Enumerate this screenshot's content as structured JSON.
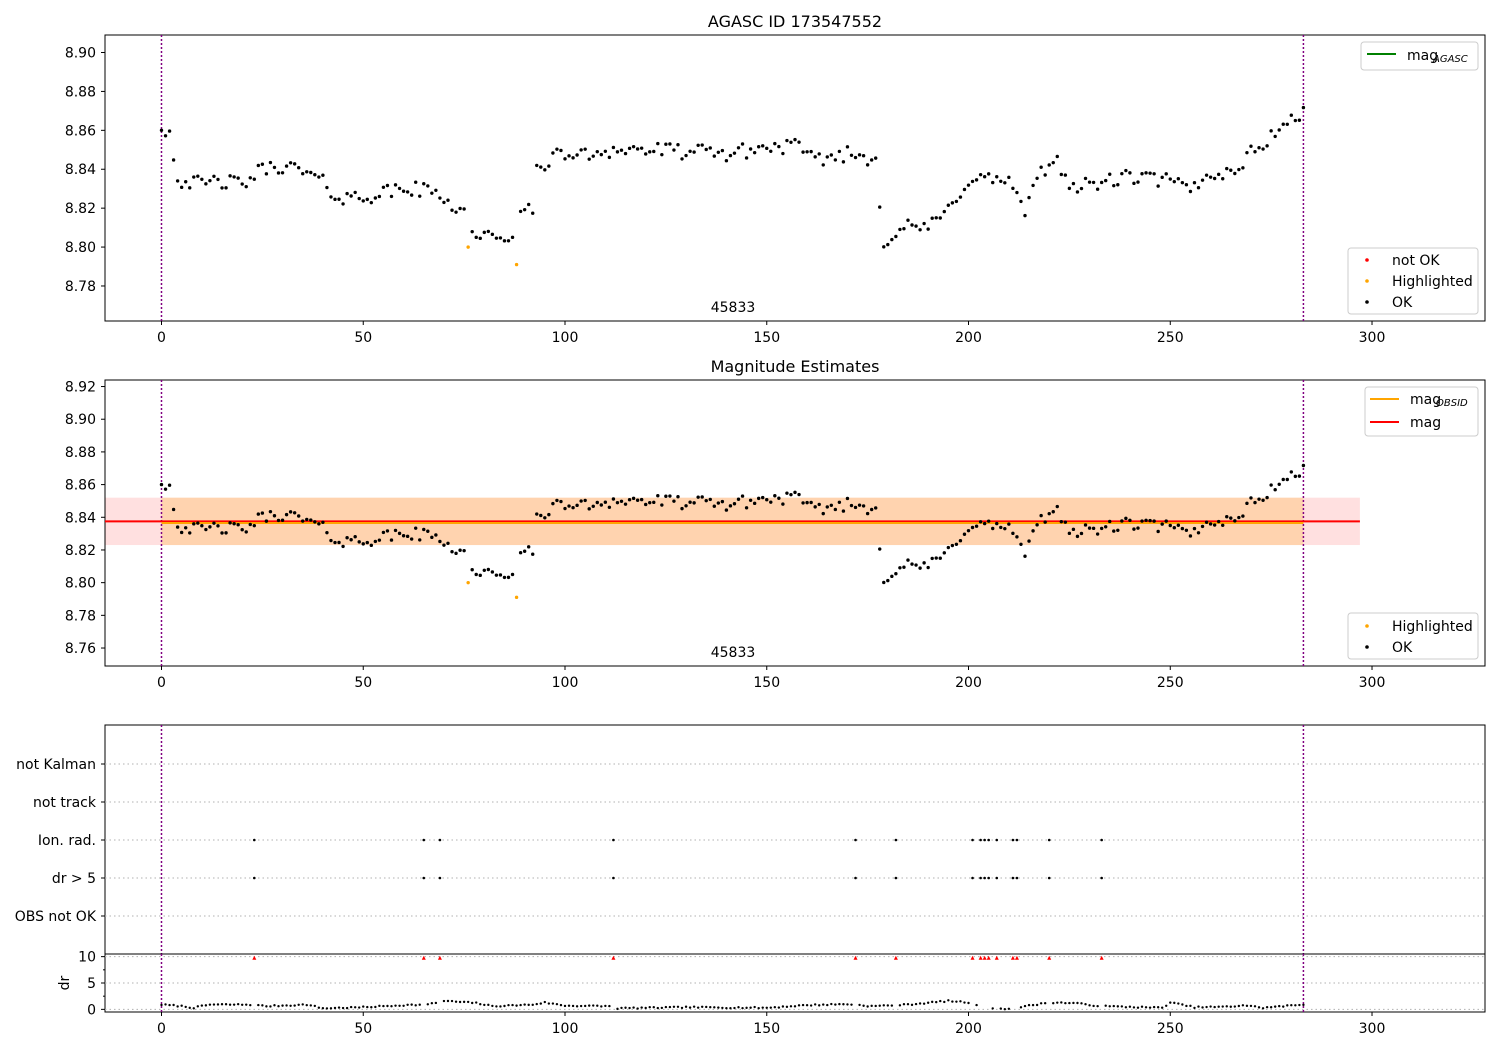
{
  "chart_data": [
    {
      "type": "scatter",
      "title": "AGASC ID 173547552",
      "annotation": "45833",
      "x_ticks": [
        "0",
        "50",
        "100",
        "150",
        "200",
        "250",
        "300"
      ],
      "y_ticks": [
        "8.78",
        "8.80",
        "8.82",
        "8.84",
        "8.86",
        "8.88",
        "8.90"
      ],
      "xlim": [
        -14,
        328
      ],
      "ylim": [
        8.762,
        8.909
      ],
      "obs_boundaries": [
        0,
        283
      ],
      "line_legend": [
        {
          "name": "mag",
          "subscript": "AGASC",
          "color": "#008000"
        }
      ],
      "marker_legend": [
        {
          "name": "not OK",
          "color": "#ff0000"
        },
        {
          "name": "Highlighted",
          "color": "#ffa500"
        },
        {
          "name": "OK",
          "color": "#000000"
        }
      ],
      "highlighted_points": [
        {
          "x": 76,
          "y": 8.8
        },
        {
          "x": 88,
          "y": 8.791
        }
      ],
      "series_anchors": [
        [
          0,
          8.862
        ],
        [
          2,
          8.859
        ],
        [
          4,
          8.835
        ],
        [
          10,
          8.832
        ],
        [
          14,
          8.834
        ],
        [
          20,
          8.832
        ],
        [
          25,
          8.84
        ],
        [
          30,
          8.842
        ],
        [
          36,
          8.838
        ],
        [
          40,
          8.833
        ],
        [
          44,
          8.825
        ],
        [
          50,
          8.826
        ],
        [
          56,
          8.828
        ],
        [
          60,
          8.83
        ],
        [
          66,
          8.829
        ],
        [
          70,
          8.826
        ],
        [
          73,
          8.82
        ],
        [
          75,
          8.818
        ],
        [
          77,
          8.808
        ],
        [
          80,
          8.806
        ],
        [
          84,
          8.802
        ],
        [
          87,
          8.808
        ],
        [
          89,
          8.818
        ],
        [
          92,
          8.818
        ],
        [
          93,
          8.84
        ],
        [
          96,
          8.845
        ],
        [
          100,
          8.848
        ],
        [
          105,
          8.847
        ],
        [
          110,
          8.85
        ],
        [
          120,
          8.85
        ],
        [
          130,
          8.849
        ],
        [
          140,
          8.848
        ],
        [
          150,
          8.851
        ],
        [
          155,
          8.852
        ],
        [
          158,
          8.852
        ],
        [
          160,
          8.845
        ],
        [
          165,
          8.846
        ],
        [
          170,
          8.848
        ],
        [
          175,
          8.846
        ],
        [
          177,
          8.845
        ],
        [
          179,
          8.803
        ],
        [
          184,
          8.81
        ],
        [
          188,
          8.81
        ],
        [
          192,
          8.812
        ],
        [
          196,
          8.822
        ],
        [
          200,
          8.835
        ],
        [
          205,
          8.835
        ],
        [
          210,
          8.834
        ],
        [
          214,
          8.818
        ],
        [
          218,
          8.838
        ],
        [
          222,
          8.845
        ],
        [
          226,
          8.83
        ],
        [
          230,
          8.832
        ],
        [
          240,
          8.836
        ],
        [
          250,
          8.834
        ],
        [
          255,
          8.829
        ],
        [
          260,
          8.838
        ],
        [
          265,
          8.838
        ],
        [
          270,
          8.848
        ],
        [
          275,
          8.857
        ],
        [
          280,
          8.866
        ],
        [
          283,
          8.868
        ]
      ],
      "noise": 0.004
    },
    {
      "type": "scatter",
      "title": "Magnitude Estimates",
      "annotation": "45833",
      "x_ticks": [
        "0",
        "50",
        "100",
        "150",
        "200",
        "250",
        "300"
      ],
      "y_ticks": [
        "8.76",
        "8.78",
        "8.80",
        "8.82",
        "8.84",
        "8.86",
        "8.88",
        "8.90",
        "8.92"
      ],
      "xlim": [
        -14,
        328
      ],
      "ylim": [
        8.749,
        8.924
      ],
      "obs_boundaries": [
        0,
        283
      ],
      "mag": 8.8375,
      "mag_band": [
        8.823,
        8.852
      ],
      "mag_obsid": 8.8365,
      "band_x_end": 297,
      "line_legend": [
        {
          "name": "mag",
          "subscript": "OBSID",
          "color": "#ffa500"
        },
        {
          "name": "mag",
          "subscript": "",
          "color": "#ff0000"
        }
      ],
      "marker_legend": [
        {
          "name": "Highlighted",
          "color": "#ffa500"
        },
        {
          "name": "OK",
          "color": "#000000"
        }
      ]
    },
    {
      "type": "scatter",
      "y_categories": [
        "not Kalman",
        "not track",
        "Ion. rad.",
        "dr > 5",
        "OBS not OK"
      ],
      "flag_events": {
        "Ion. rad.": [
          23,
          65,
          69,
          112,
          172,
          182,
          201,
          203,
          204,
          205,
          207,
          211,
          212,
          220,
          233
        ],
        "dr > 5": [
          23,
          65,
          69,
          112,
          172,
          182,
          201,
          203,
          204,
          205,
          207,
          211,
          212,
          220,
          233
        ]
      },
      "x_ticks": [
        "0",
        "50",
        "100",
        "150",
        "200",
        "250",
        "300"
      ],
      "xlim": [
        -14,
        328
      ],
      "obs_boundaries": [
        0,
        283
      ]
    },
    {
      "type": "scatter",
      "ylabel": "dr",
      "y_ticks": [
        "0",
        "5",
        "10"
      ],
      "ylim": [
        -0.5,
        10.5
      ],
      "x_ticks": [
        "0",
        "50",
        "100",
        "150",
        "200",
        "250",
        "300"
      ],
      "xlim": [
        -14,
        328
      ],
      "obs_boundaries": [
        0,
        283
      ],
      "clipped_points": [
        23,
        65,
        69,
        112,
        172,
        182,
        201,
        203,
        204,
        205,
        207,
        211,
        212,
        220,
        233
      ],
      "dr_anchors": [
        [
          0,
          0.9
        ],
        [
          5,
          0.6
        ],
        [
          8,
          0.3
        ],
        [
          12,
          0.9
        ],
        [
          22,
          0.9
        ],
        [
          26,
          0.6
        ],
        [
          36,
          0.9
        ],
        [
          40,
          0.2
        ],
        [
          50,
          0.4
        ],
        [
          60,
          0.8
        ],
        [
          66,
          0.9
        ],
        [
          70,
          1.6
        ],
        [
          78,
          1.2
        ],
        [
          82,
          0.6
        ],
        [
          92,
          0.9
        ],
        [
          95,
          1.3
        ],
        [
          100,
          0.7
        ],
        [
          111,
          0.6
        ],
        [
          113,
          0.2
        ],
        [
          130,
          0.4
        ],
        [
          150,
          0.3
        ],
        [
          160,
          0.8
        ],
        [
          170,
          1.0
        ],
        [
          176,
          0.6
        ],
        [
          185,
          0.9
        ],
        [
          195,
          1.6
        ],
        [
          200,
          1.3
        ],
        [
          203,
          0.4
        ],
        [
          210,
          0.1
        ],
        [
          220,
          1.3
        ],
        [
          226,
          1.2
        ],
        [
          233,
          0.6
        ],
        [
          248,
          0.3
        ],
        [
          250,
          1.3
        ],
        [
          256,
          0.4
        ],
        [
          265,
          0.5
        ],
        [
          268,
          0.8
        ],
        [
          273,
          0.3
        ],
        [
          283,
          0.9
        ]
      ]
    }
  ]
}
